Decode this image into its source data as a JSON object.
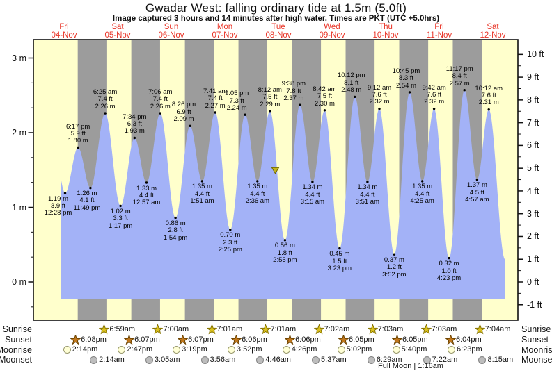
{
  "header": {
    "title": "Gwadar West: falling  ordinary tide at 1.5m (5.0ft)",
    "subtitle": "Image captured 3 hours and 14 minutes after high water. Times are PKT (UTC +5.0hrs)"
  },
  "days": [
    {
      "dow": "Fri",
      "date": "04-Nov"
    },
    {
      "dow": "Sat",
      "date": "05-Nov"
    },
    {
      "dow": "Sun",
      "date": "06-Nov"
    },
    {
      "dow": "Mon",
      "date": "07-Nov"
    },
    {
      "dow": "Tue",
      "date": "08-Nov"
    },
    {
      "dow": "Wed",
      "date": "09-Nov"
    },
    {
      "dow": "Thu",
      "date": "10-Nov"
    },
    {
      "dow": "Fri",
      "date": "11-Nov"
    },
    {
      "dow": "Sat",
      "date": "12-Nov"
    }
  ],
  "axes": {
    "left_ticks": [
      "3 m",
      "2 m",
      "1 m",
      "0 m"
    ],
    "right_ticks": [
      "10 ft",
      "9 ft",
      "8 ft",
      "7 ft",
      "6 ft",
      "5 ft",
      "4 ft",
      "3 ft",
      "2 ft",
      "1 ft",
      "0 ft",
      "-1 ft"
    ]
  },
  "chart_data": {
    "type": "area",
    "title": "Gwadar West: falling  ordinary tide at 1.5m (5.0ft)",
    "ylabel_left": "metres",
    "ylabel_right": "feet",
    "ylim_m": [
      -0.52,
      3.26
    ],
    "grid": false,
    "legend": false,
    "current_marker": {
      "shape": "triangle-down",
      "level_m": 1.5,
      "level_ft": 5.0,
      "state": "falling"
    },
    "extremes": [
      {
        "kind": "low",
        "day": 0,
        "time": "12:28 pm",
        "m": "1.19",
        "ft": "3.9"
      },
      {
        "kind": "high",
        "day": 0,
        "time": "6:17 pm",
        "m": "1.80",
        "ft": "5.9"
      },
      {
        "kind": "low",
        "day": 0,
        "time": "11:49 pm",
        "m": "1.26",
        "ft": "4.1"
      },
      {
        "kind": "high",
        "day": 1,
        "time": "6:25 am",
        "m": "2.26",
        "ft": "7.4"
      },
      {
        "kind": "low",
        "day": 1,
        "time": "1:17 pm",
        "m": "1.02",
        "ft": "3.3"
      },
      {
        "kind": "high",
        "day": 1,
        "time": "7:34 pm",
        "m": "1.93",
        "ft": "6.3"
      },
      {
        "kind": "low",
        "day": 2,
        "time": "12:57 am",
        "m": "1.33",
        "ft": "4.4"
      },
      {
        "kind": "high",
        "day": 2,
        "time": "7:06 am",
        "m": "2.26",
        "ft": "7.4"
      },
      {
        "kind": "low",
        "day": 2,
        "time": "1:54 pm",
        "m": "0.86",
        "ft": "2.8"
      },
      {
        "kind": "high",
        "day": 2,
        "time": "8:26 pm",
        "m": "2.09",
        "ft": "6.9"
      },
      {
        "kind": "low",
        "day": 3,
        "time": "1:51 am",
        "m": "1.35",
        "ft": "4.4"
      },
      {
        "kind": "high",
        "day": 3,
        "time": "7:41 am",
        "m": "2.27",
        "ft": "7.4"
      },
      {
        "kind": "low",
        "day": 3,
        "time": "2:25 pm",
        "m": "0.70",
        "ft": "2.3"
      },
      {
        "kind": "high",
        "day": 3,
        "time": "9:05 pm",
        "m": "2.24",
        "ft": "7.3"
      },
      {
        "kind": "low",
        "day": 4,
        "time": "2:36 am",
        "m": "1.35",
        "ft": "4.4"
      },
      {
        "kind": "high",
        "day": 4,
        "time": "8:12 am",
        "m": "2.29",
        "ft": "7.5"
      },
      {
        "kind": "low",
        "day": 4,
        "time": "2:55 pm",
        "m": "0.56",
        "ft": "1.8"
      },
      {
        "kind": "high",
        "day": 4,
        "time": "9:38 pm",
        "m": "2.37",
        "ft": "7.8"
      },
      {
        "kind": "low",
        "day": 5,
        "time": "3:15 am",
        "m": "1.34",
        "ft": "4.4"
      },
      {
        "kind": "high",
        "day": 5,
        "time": "8:42 am",
        "m": "2.30",
        "ft": "7.5"
      },
      {
        "kind": "low",
        "day": 5,
        "time": "3:23 pm",
        "m": "0.45",
        "ft": "1.5"
      },
      {
        "kind": "high",
        "day": 5,
        "time": "10:12 pm",
        "m": "2.48",
        "ft": "8.1"
      },
      {
        "kind": "low",
        "day": 6,
        "time": "3:51 am",
        "m": "1.34",
        "ft": "4.4"
      },
      {
        "kind": "high",
        "day": 6,
        "time": "9:12 am",
        "m": "2.32",
        "ft": "7.6"
      },
      {
        "kind": "low",
        "day": 6,
        "time": "3:52 pm",
        "m": "0.37",
        "ft": "1.2"
      },
      {
        "kind": "high",
        "day": 6,
        "time": "10:45 pm",
        "m": "2.54",
        "ft": "8.3"
      },
      {
        "kind": "low",
        "day": 7,
        "time": "4:25 am",
        "m": "1.35",
        "ft": "4.4"
      },
      {
        "kind": "high",
        "day": 7,
        "time": "9:42 am",
        "m": "2.32",
        "ft": "7.6"
      },
      {
        "kind": "low",
        "day": 7,
        "time": "4:23 pm",
        "m": "0.32",
        "ft": "1.0"
      },
      {
        "kind": "high",
        "day": 7,
        "time": "11:17 pm",
        "m": "2.57",
        "ft": "8.4"
      },
      {
        "kind": "low",
        "day": 8,
        "time": "4:57 am",
        "m": "1.37",
        "ft": "4.5"
      },
      {
        "kind": "high",
        "day": 8,
        "time": "10:12 am",
        "m": "2.31",
        "ft": "7.6"
      }
    ]
  },
  "astro": {
    "rows": [
      {
        "id": "sunrise",
        "label": "Sunrise",
        "icon": "sunrise-star-icon",
        "events": [
          {
            "day": 1,
            "time": "6:59am"
          },
          {
            "day": 2,
            "time": "7:00am"
          },
          {
            "day": 3,
            "time": "7:01am"
          },
          {
            "day": 4,
            "time": "7:01am"
          },
          {
            "day": 5,
            "time": "7:02am"
          },
          {
            "day": 6,
            "time": "7:03am"
          },
          {
            "day": 7,
            "time": "7:03am"
          },
          {
            "day": 8,
            "time": "7:04am"
          }
        ]
      },
      {
        "id": "sunset",
        "label": "Sunset",
        "icon": "sunset-star-icon",
        "events": [
          {
            "day": 0,
            "time": "6:08pm"
          },
          {
            "day": 1,
            "time": "6:07pm"
          },
          {
            "day": 2,
            "time": "6:07pm"
          },
          {
            "day": 3,
            "time": "6:06pm"
          },
          {
            "day": 4,
            "time": "6:06pm"
          },
          {
            "day": 5,
            "time": "6:05pm"
          },
          {
            "day": 6,
            "time": "6:05pm"
          },
          {
            "day": 7,
            "time": "6:04pm"
          }
        ]
      },
      {
        "id": "moonrise",
        "label": "Moonrise",
        "icon": "moonrise-circle-icon",
        "events": [
          {
            "day": 0,
            "time": "2:14pm"
          },
          {
            "day": 1,
            "time": "2:47pm"
          },
          {
            "day": 2,
            "time": "3:19pm"
          },
          {
            "day": 3,
            "time": "3:52pm"
          },
          {
            "day": 4,
            "time": "4:26pm"
          },
          {
            "day": 5,
            "time": "5:02pm"
          },
          {
            "day": 6,
            "time": "5:40pm"
          },
          {
            "day": 7,
            "time": "6:23pm"
          }
        ]
      },
      {
        "id": "moonset",
        "label": "Moonset",
        "icon": "moonset-circle-icon",
        "events": [
          {
            "day": 1,
            "time": "2:14am"
          },
          {
            "day": 2,
            "time": "3:05am"
          },
          {
            "day": 3,
            "time": "3:56am"
          },
          {
            "day": 4,
            "time": "4:46am"
          },
          {
            "day": 5,
            "time": "5:37am"
          },
          {
            "day": 6,
            "time": "6:29am"
          },
          {
            "day": 7,
            "time": "7:22am"
          },
          {
            "day": 8,
            "time": "8:15am"
          }
        ]
      }
    ],
    "footer": "Full Moon | 1:16am"
  },
  "colors": {
    "day_band": "#ffffcc",
    "night_band": "#9c9c9c",
    "water": "#a3b2f7",
    "date_red": "#e93528",
    "ink": "#111111",
    "sunrise_star": "#ddc31f",
    "sunrise_star_edge": "#857300",
    "sunset_star": "#c1771c",
    "sunset_star_edge": "#6b4300",
    "moonrise_fill": "#ffffd6",
    "moonrise_edge": "#99996e",
    "moonset_fill": "#bdbdbd",
    "moonset_edge": "#828282",
    "marker_fill": "#c3b41c",
    "marker_edge": "#6b6400"
  }
}
